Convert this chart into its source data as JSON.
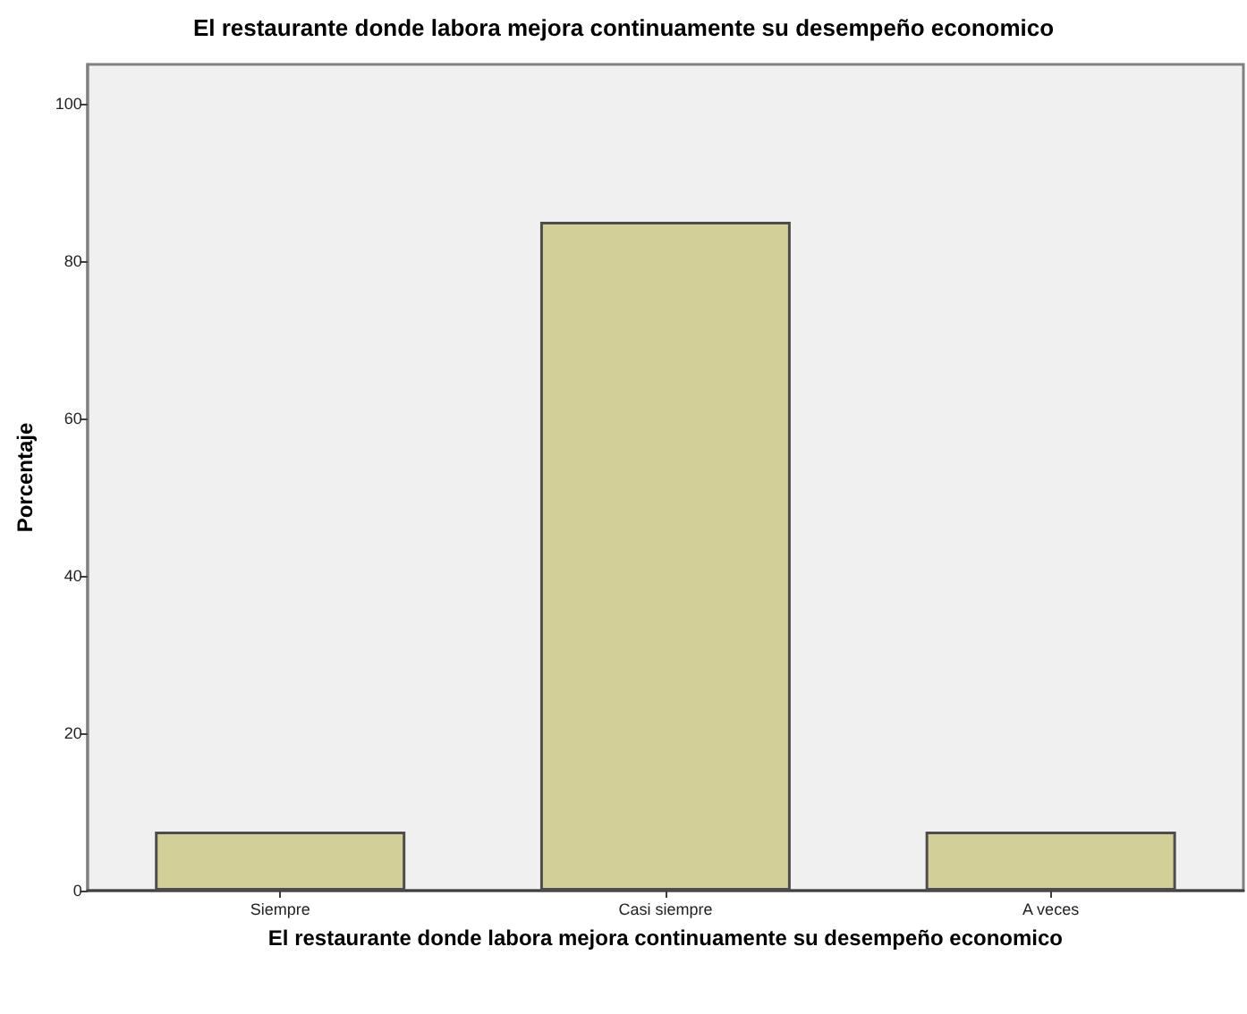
{
  "chart_data": {
    "type": "bar",
    "title": "El restaurante donde labora mejora continuamente su desempeño economico",
    "xlabel": "El restaurante donde labora mejora continuamente su desempeño economico",
    "ylabel": "Porcentaje",
    "categories": [
      "Siempre",
      "Casi siempre",
      "A veces"
    ],
    "values": [
      7.5,
      85,
      7.5
    ],
    "color": "#d3cf98",
    "ylim": [
      0,
      105
    ],
    "yticks": [
      0,
      20,
      40,
      60,
      80,
      100
    ]
  }
}
